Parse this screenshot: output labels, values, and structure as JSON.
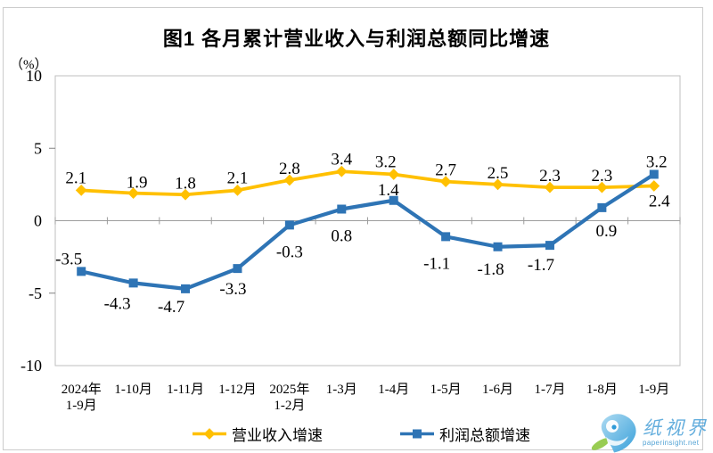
{
  "page": {
    "title": "图1  各月累计营业收入与利润总额同比增速",
    "unit_label": "（%）"
  },
  "chart_data": {
    "type": "line",
    "title": "图1  各月累计营业收入与利润总额同比增速",
    "unit": "（%）",
    "categories": [
      [
        "2024年",
        "1-9月"
      ],
      [
        "1-10月"
      ],
      [
        "1-11月"
      ],
      [
        "1-12月"
      ],
      [
        "2025年",
        "1-2月"
      ],
      [
        "1-3月"
      ],
      [
        "1-4月"
      ],
      [
        "1-5月"
      ],
      [
        "1-6月"
      ],
      [
        "1-7月"
      ],
      [
        "1-8月"
      ],
      [
        "1-9月"
      ]
    ],
    "series": [
      {
        "name": "营业收入增速",
        "color": "#FFC000",
        "marker": "diamond",
        "values": [
          2.1,
          1.9,
          1.8,
          2.1,
          2.8,
          3.4,
          3.2,
          2.7,
          2.5,
          2.3,
          2.3,
          2.4
        ],
        "label_offsets": [
          [
            -6,
            -8
          ],
          [
            4,
            -6
          ],
          [
            0,
            -7
          ],
          [
            0,
            -8
          ],
          [
            0,
            -7
          ],
          [
            0,
            -8
          ],
          [
            -9,
            -8
          ],
          [
            0,
            -7
          ],
          [
            0,
            -7
          ],
          [
            0,
            -7
          ],
          [
            0,
            -7
          ],
          [
            6,
            23
          ]
        ]
      },
      {
        "name": "利润总额增速",
        "color": "#2E74B5",
        "marker": "square",
        "values": [
          -3.5,
          -4.3,
          -4.7,
          -3.3,
          -0.3,
          0.8,
          1.4,
          -1.1,
          -1.8,
          -1.7,
          0.9,
          3.2
        ],
        "label_offsets": [
          [
            -14,
            -8
          ],
          [
            -18,
            29
          ],
          [
            -16,
            26
          ],
          [
            -5,
            29
          ],
          [
            0,
            36
          ],
          [
            0,
            36
          ],
          [
            -6,
            -6
          ],
          [
            -10,
            36
          ],
          [
            -8,
            31
          ],
          [
            -10,
            28
          ],
          [
            5,
            32
          ],
          [
            3,
            -8
          ]
        ]
      }
    ],
    "ylim": [
      -10,
      10
    ],
    "yticks": [
      10,
      5,
      0,
      -5,
      -10
    ],
    "grid": false,
    "legend_position": "bottom",
    "axis_colors": {
      "plot_border": "#BFBFBF",
      "zero_line": "#9D9D9D",
      "tick": "#808080"
    }
  },
  "legend": {
    "items": [
      {
        "label": "营业收入增速",
        "color": "#FFC000",
        "marker": "diamond"
      },
      {
        "label": "利润总额增速",
        "color": "#2E74B5",
        "marker": "square"
      }
    ]
  },
  "watermark": {
    "brand": "纸视界",
    "site": "paperinsight.net",
    "logo": "paper-insight-logo",
    "colors": {
      "blue": "#3E9CD6",
      "light_blue": "#A9D9F1",
      "green": "#8DC63F"
    }
  }
}
